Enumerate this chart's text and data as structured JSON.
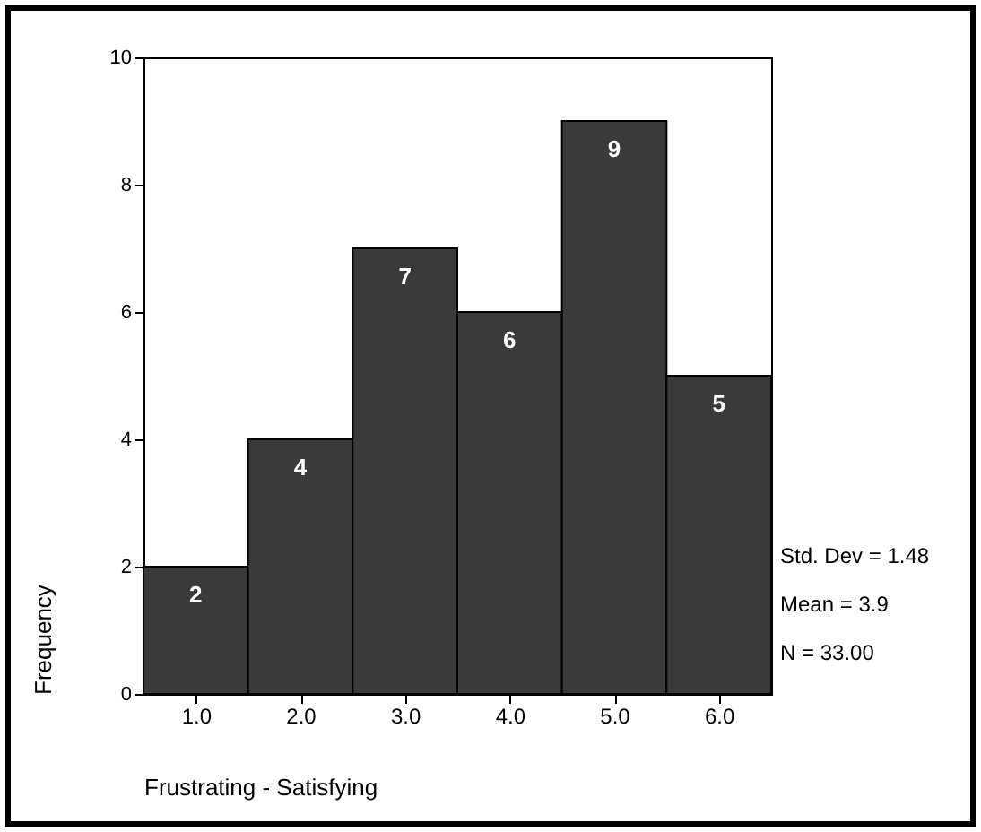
{
  "chart_data": {
    "type": "histogram",
    "xlabel": "Frustrating - Satisfying",
    "ylabel": "Frequency",
    "bins": [
      0.5,
      1.5,
      2.5,
      3.5,
      4.5,
      5.5,
      6.5
    ],
    "values": [
      2,
      4,
      7,
      6,
      9,
      5
    ],
    "color": "#3a3a3a",
    "xlim": [
      0.5,
      6.5
    ],
    "xticks": [
      {
        "value": 1,
        "label": "1.0"
      },
      {
        "value": 2,
        "label": "2.0"
      },
      {
        "value": 3,
        "label": "3.0"
      },
      {
        "value": 4,
        "label": "4.0"
      },
      {
        "value": 5,
        "label": "5.0"
      },
      {
        "value": 6,
        "label": "6.0"
      }
    ],
    "ylim": [
      0,
      10
    ],
    "yticks": [
      0,
      2,
      4,
      6,
      8,
      10
    ],
    "data_labels": true,
    "grid": false,
    "annotations": [
      "Std. Dev = 1.48",
      "Mean = 3.9",
      "N = 33.00"
    ]
  }
}
